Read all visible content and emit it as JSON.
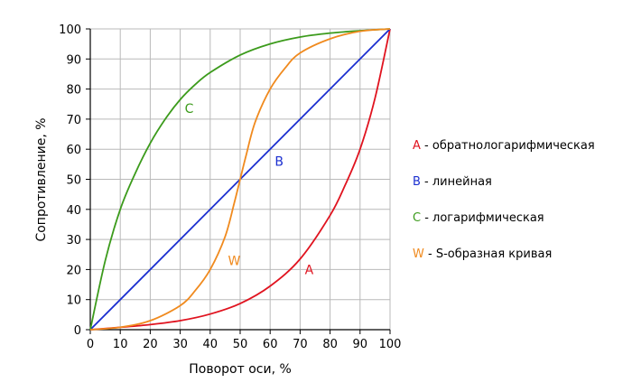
{
  "chart_data": {
    "type": "line",
    "xlabel": "Поворот оси, %",
    "ylabel": "Сопротивление, %",
    "xlim": [
      0,
      100
    ],
    "ylim": [
      0,
      100
    ],
    "xticks": [
      0,
      10,
      20,
      30,
      40,
      50,
      60,
      70,
      80,
      90,
      100
    ],
    "yticks": [
      0,
      10,
      20,
      30,
      40,
      50,
      60,
      70,
      80,
      90,
      100
    ],
    "grid": true,
    "legend_position": "right",
    "series": [
      {
        "id": "A",
        "letter": "A",
        "description": "обратнологарифмическая",
        "color": "#e0131f",
        "label_at": [
          73,
          20
        ],
        "x": [
          0,
          10,
          20,
          30,
          40,
          50,
          60,
          70,
          80,
          85,
          90,
          95,
          100
        ],
        "y": [
          0,
          0.8,
          1.7,
          3.0,
          5.2,
          8.7,
          14.5,
          23.5,
          38,
          48,
          60,
          77,
          100
        ]
      },
      {
        "id": "B",
        "letter": "B",
        "description": "линейная",
        "color": "#1b2fd0",
        "label_at": [
          63,
          56
        ],
        "x": [
          0,
          100
        ],
        "y": [
          0,
          100
        ]
      },
      {
        "id": "C",
        "letter": "C",
        "description": "логарифмическая",
        "color": "#3c9b1c",
        "label_at": [
          33,
          73.5
        ],
        "x": [
          0,
          5,
          10,
          15,
          20,
          25,
          30,
          35,
          40,
          50,
          60,
          70,
          80,
          90,
          100
        ],
        "y": [
          0,
          23,
          40,
          52,
          62,
          70,
          76.5,
          81.5,
          85.5,
          91.3,
          95,
          97.3,
          98.6,
          99.4,
          100
        ]
      },
      {
        "id": "W",
        "letter": "W",
        "description": "S-образная кривая",
        "color": "#f08a1e",
        "label_at": [
          48,
          23
        ],
        "x": [
          0,
          10,
          20,
          30,
          35,
          40,
          45,
          48,
          50,
          52,
          55,
          60,
          65,
          70,
          80,
          90,
          100
        ],
        "y": [
          0,
          0.8,
          3,
          8,
          13,
          20,
          31,
          42,
          50,
          58,
          69,
          80,
          87,
          92,
          96.7,
          99.2,
          100
        ]
      }
    ]
  }
}
